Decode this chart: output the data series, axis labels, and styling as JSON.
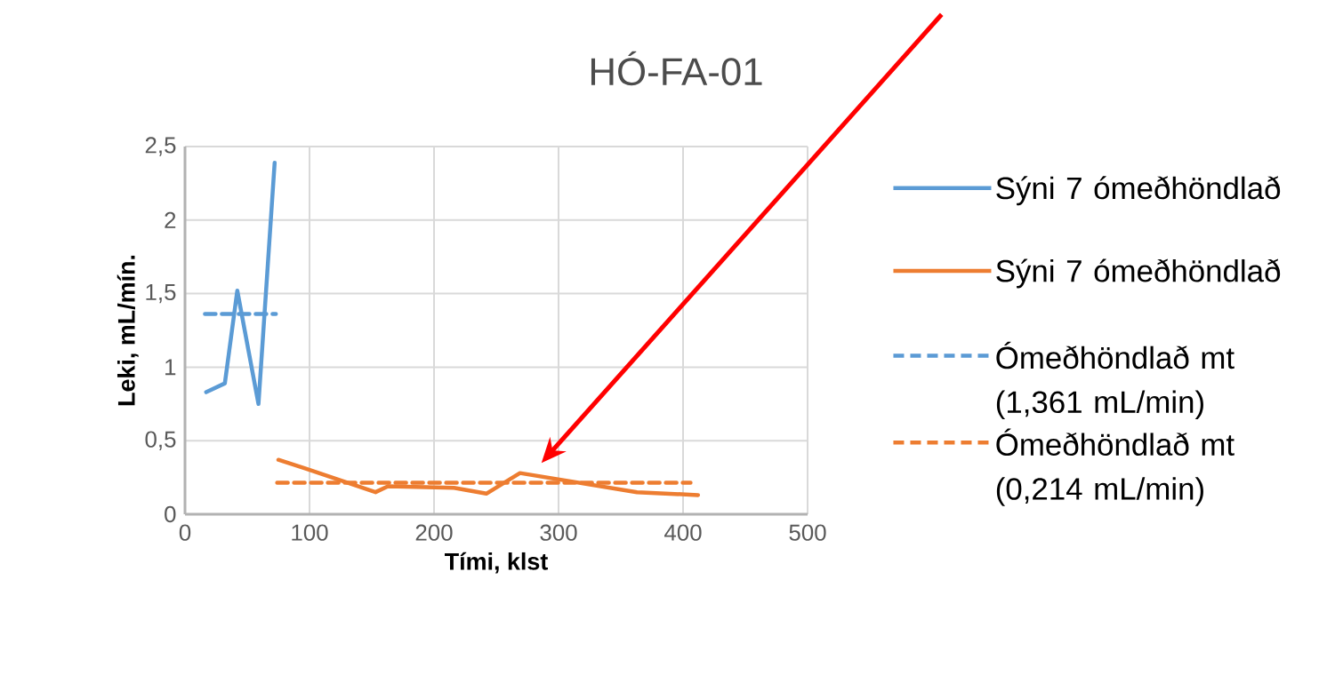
{
  "chart_data": {
    "type": "line",
    "title": "HÓ-FA-01",
    "xlabel": "Tími, klst",
    "ylabel": "Leki, mL/mín.",
    "xlim": [
      0,
      500
    ],
    "xticks": [
      0,
      100,
      200,
      300,
      400,
      500
    ],
    "ylim": [
      0,
      2.5
    ],
    "yticks": [
      0,
      {
        "value": 0.5,
        "label": "0,5"
      },
      1,
      {
        "value": 1.5,
        "label": "1,5"
      },
      2,
      {
        "value": 2.5,
        "label": "2,5"
      }
    ],
    "grid": true,
    "legend": "right",
    "series": [
      {
        "name": "Sýni 7 ómeðhöndlað",
        "color": "#5b9bd5",
        "line_style": "solid",
        "x": [
          17,
          32,
          42,
          59,
          72
        ],
        "values": [
          0.83,
          0.89,
          1.52,
          0.75,
          2.39
        ]
      },
      {
        "name": "Sýni 7 ómeðhöndlað",
        "color": "#ed7d31",
        "line_style": "solid",
        "x": [
          75,
          97,
          153,
          163,
          216,
          242,
          269,
          363,
          412
        ],
        "values": [
          0.37,
          0.31,
          0.15,
          0.19,
          0.18,
          0.14,
          0.28,
          0.15,
          0.13
        ]
      },
      {
        "name": "Ómeðhöndlað mt (1,361 mL/min)",
        "color": "#5b9bd5",
        "line_style": "dashed",
        "x": [
          16,
          73
        ],
        "values": [
          1.361,
          1.361
        ]
      },
      {
        "name": "Ómeðhöndlað mt (0,214 mL/min)",
        "color": "#ed7d31",
        "line_style": "dashed",
        "x": [
          74,
          406
        ],
        "values": [
          0.214,
          0.214
        ]
      }
    ]
  }
}
